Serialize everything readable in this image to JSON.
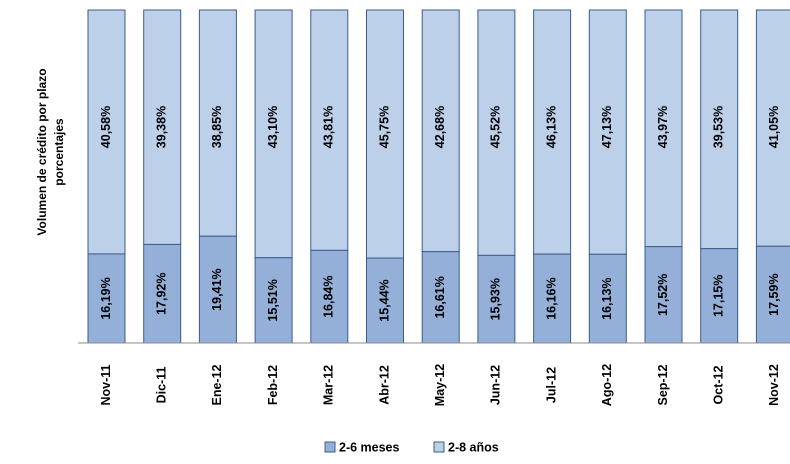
{
  "chart_data": {
    "type": "bar",
    "stacked": true,
    "ylabel_lines": [
      "Volumen de crédito por plazo",
      "porcentajes"
    ],
    "categories": [
      "Nov-11",
      "Dic-11",
      "Ene-12",
      "Feb-12",
      "Mar-12",
      "Abr-12",
      "May-12",
      "Jun-12",
      "Jul-12",
      "Ago-12",
      "Sep-12",
      "Oct-12",
      "Nov-12"
    ],
    "series": [
      {
        "name": "2-6 meses",
        "color": "#94B0D8",
        "values": [
          16.19,
          17.92,
          19.41,
          15.51,
          16.84,
          15.44,
          16.61,
          15.93,
          16.16,
          16.13,
          17.52,
          17.15,
          17.59
        ],
        "labels": [
          "16,19%",
          "17,92%",
          "19,41%",
          "15,51%",
          "16,84%",
          "15,44%",
          "16,61%",
          "15,93%",
          "16,16%",
          "16,13%",
          "17,52%",
          "17,15%",
          "17,59%"
        ]
      },
      {
        "name": "2-8 años",
        "color": "#BCD0EA",
        "values": [
          40.58,
          39.38,
          38.85,
          43.1,
          43.81,
          45.75,
          42.68,
          45.52,
          46.13,
          47.13,
          43.97,
          39.53,
          41.05
        ],
        "labels": [
          "40,58%",
          "39,38%",
          "38,85%",
          "43,10%",
          "43,81%",
          "45,75%",
          "42,68%",
          "45,52%",
          "46,13%",
          "47,13%",
          "43,97%",
          "39,53%",
          "41,05%"
        ]
      }
    ],
    "border_color": "#3D5C8C",
    "legend_position": "bottom",
    "grid": false
  }
}
